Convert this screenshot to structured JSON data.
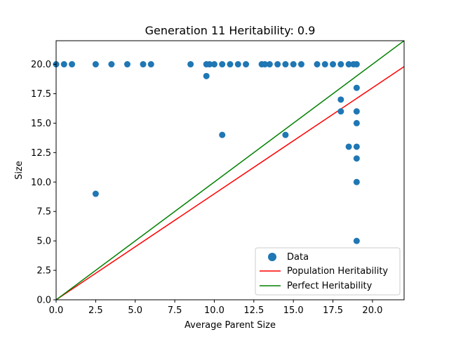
{
  "chart_data": {
    "type": "scatter",
    "title": "Generation 11 Heritability: 0.9",
    "xlabel": "Average Parent Size",
    "ylabel": "Size",
    "xlim": [
      0,
      22
    ],
    "ylim": [
      0,
      22
    ],
    "xticks": [
      "0.0",
      "2.5",
      "5.0",
      "7.5",
      "10.0",
      "12.5",
      "15.0",
      "17.5",
      "20.0"
    ],
    "yticks": [
      "0.0",
      "2.5",
      "5.0",
      "7.5",
      "10.0",
      "12.5",
      "15.0",
      "17.5",
      "20.0"
    ],
    "grid": false,
    "legend_position": "lower-right",
    "scatter": {
      "name": "Data",
      "color": "#1f77b4",
      "points": [
        [
          0,
          20
        ],
        [
          0.5,
          20
        ],
        [
          1,
          20
        ],
        [
          2.5,
          20
        ],
        [
          3.5,
          20
        ],
        [
          4.5,
          20
        ],
        [
          5.5,
          20
        ],
        [
          6,
          20
        ],
        [
          8.5,
          20
        ],
        [
          9.5,
          20
        ],
        [
          9.7,
          20
        ],
        [
          10,
          20
        ],
        [
          10.5,
          20
        ],
        [
          11,
          20
        ],
        [
          11.5,
          20
        ],
        [
          12,
          20
        ],
        [
          13,
          20
        ],
        [
          13.2,
          20
        ],
        [
          13.5,
          20
        ],
        [
          14,
          20
        ],
        [
          14.5,
          20
        ],
        [
          15,
          20
        ],
        [
          15.5,
          20
        ],
        [
          16.5,
          20
        ],
        [
          17,
          20
        ],
        [
          17.5,
          20
        ],
        [
          18,
          20
        ],
        [
          18.5,
          20
        ],
        [
          18.8,
          20
        ],
        [
          19,
          20
        ],
        [
          9.5,
          19
        ],
        [
          2.5,
          9
        ],
        [
          10.5,
          14
        ],
        [
          14.5,
          14
        ],
        [
          18,
          17
        ],
        [
          18,
          16
        ],
        [
          18.5,
          13
        ],
        [
          19,
          18
        ],
        [
          19,
          16
        ],
        [
          19,
          15
        ],
        [
          19,
          13
        ],
        [
          19,
          12
        ],
        [
          19,
          10
        ],
        [
          19,
          5
        ]
      ]
    },
    "lines": [
      {
        "name": "Population Heritability",
        "color": "#ff0000",
        "x": [
          0,
          22
        ],
        "y": [
          0,
          19.8
        ]
      },
      {
        "name": "Perfect Heritability",
        "color": "#008000",
        "x": [
          0,
          22
        ],
        "y": [
          0,
          22
        ]
      }
    ]
  }
}
